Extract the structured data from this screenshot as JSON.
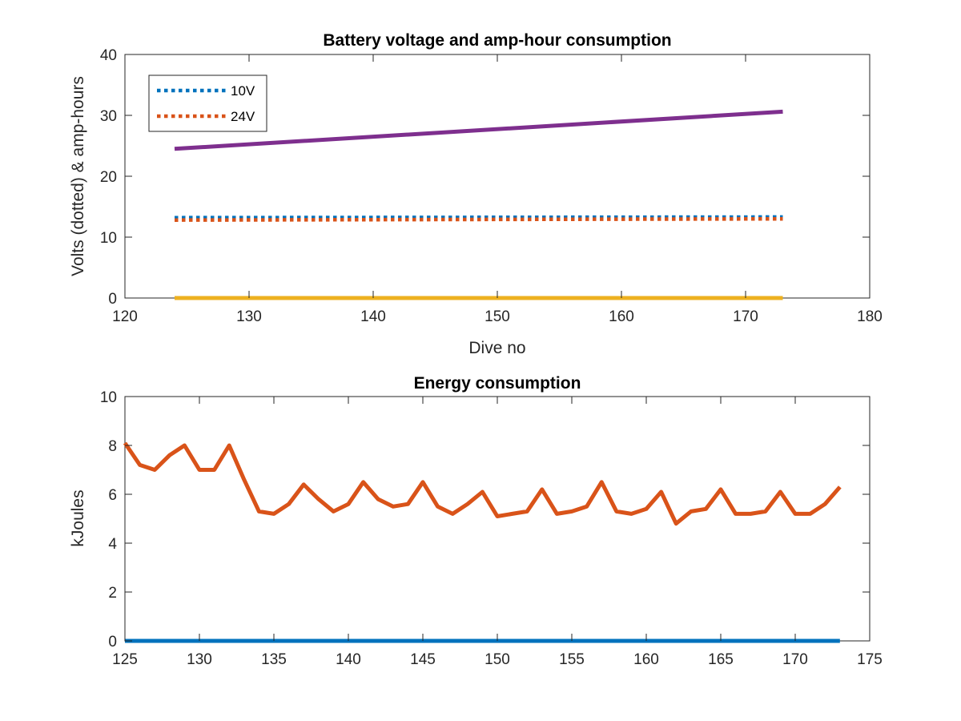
{
  "chart_data": [
    {
      "type": "line",
      "title": "Battery voltage and amp-hour consumption",
      "xlabel": "Dive no",
      "ylabel": "Volts (dotted) & amp-hours",
      "xlim": [
        120,
        180
      ],
      "ylim": [
        0,
        40
      ],
      "xticks": [
        "120",
        "130",
        "140",
        "150",
        "160",
        "170",
        "180"
      ],
      "yticks": [
        "0",
        "10",
        "20",
        "30",
        "40"
      ],
      "grid": false,
      "legend": "top-left",
      "series": [
        {
          "name": "10V",
          "style": "dotted",
          "color": "#0072BD",
          "x": [
            124,
            173
          ],
          "y": [
            13.2,
            13.3
          ]
        },
        {
          "name": "24V",
          "style": "dotted",
          "color": "#D95319",
          "x": [
            124,
            173
          ],
          "y": [
            12.8,
            13.0
          ]
        },
        {
          "style": "solid",
          "color": "#7E2F8E",
          "x": [
            124,
            173
          ],
          "y": [
            24.5,
            30.6
          ]
        },
        {
          "style": "solid",
          "color": "#EDB120",
          "x": [
            124,
            173
          ],
          "y": [
            0,
            0
          ]
        }
      ]
    },
    {
      "type": "line",
      "title": "Energy consumption",
      "xlabel": "",
      "ylabel": "kJoules",
      "xlim": [
        125,
        175
      ],
      "ylim": [
        0,
        10
      ],
      "xticks": [
        "125",
        "130",
        "135",
        "140",
        "145",
        "150",
        "155",
        "160",
        "165",
        "170",
        "175"
      ],
      "yticks": [
        "0",
        "2",
        "4",
        "6",
        "8",
        "10"
      ],
      "grid": false,
      "series": [
        {
          "style": "solid",
          "color": "#D95319",
          "x": [
            125,
            126,
            127,
            128,
            129,
            130,
            131,
            132,
            133,
            134,
            135,
            136,
            137,
            138,
            139,
            140,
            141,
            142,
            143,
            144,
            145,
            146,
            147,
            148,
            149,
            150,
            151,
            152,
            153,
            154,
            155,
            156,
            157,
            158,
            159,
            160,
            161,
            162,
            163,
            164,
            165,
            166,
            167,
            168,
            169,
            170,
            171,
            172,
            173
          ],
          "y": [
            8.1,
            7.2,
            7.0,
            7.6,
            8.0,
            7.0,
            7.0,
            8.0,
            6.6,
            5.3,
            5.2,
            5.6,
            6.4,
            5.8,
            5.3,
            5.6,
            6.5,
            5.8,
            5.5,
            5.6,
            6.5,
            5.5,
            5.2,
            5.6,
            6.1,
            5.1,
            5.2,
            5.3,
            6.2,
            5.2,
            5.3,
            5.5,
            6.5,
            5.3,
            5.2,
            5.4,
            6.1,
            4.8,
            5.3,
            5.4,
            6.2,
            5.2,
            5.2,
            5.3,
            6.1,
            5.2,
            5.2,
            5.6,
            6.3
          ]
        },
        {
          "style": "solid",
          "color": "#0072BD",
          "x": [
            125,
            173
          ],
          "y": [
            0,
            0
          ]
        }
      ]
    }
  ]
}
